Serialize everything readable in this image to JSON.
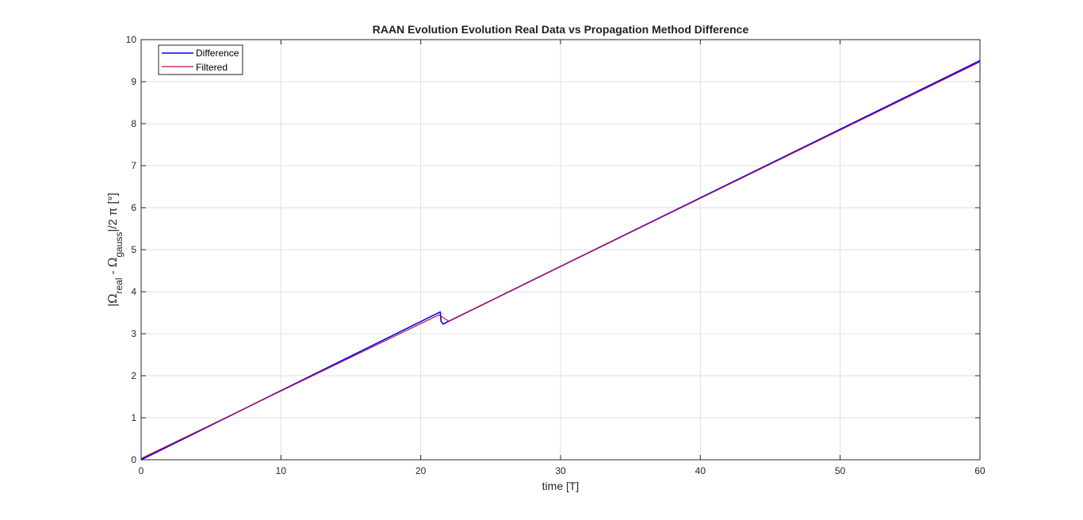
{
  "chart_data": {
    "type": "line",
    "title": "RAAN Evolution Evolution Real Data vs Propagation Method Difference",
    "xlabel": "time [T]",
    "ylabel": {
      "open": "|",
      "omega1": "Ω",
      "sub1": "real",
      "minus": " - ",
      "omega2": "Ω",
      "sub2": "gauss",
      "close": "|/2 π [°]"
    },
    "xlim": [
      0,
      60
    ],
    "ylim": [
      0,
      10
    ],
    "xticks": [
      "0",
      "10",
      "20",
      "30",
      "40",
      "50",
      "60"
    ],
    "yticks": [
      "0",
      "1",
      "2",
      "3",
      "4",
      "5",
      "6",
      "7",
      "8",
      "9",
      "10"
    ],
    "grid": true,
    "legend_position": "top-left",
    "series": [
      {
        "name": "Difference",
        "color": "#0000ff",
        "x": [
          0,
          21.4,
          21.45,
          21.6,
          60
        ],
        "y": [
          0,
          3.52,
          3.3,
          3.23,
          9.5
        ]
      },
      {
        "name": "Filtered",
        "color": "#c0143c",
        "x": [
          0,
          21.3,
          22,
          60
        ],
        "y": [
          0.03,
          3.45,
          3.3,
          9.47
        ]
      }
    ]
  }
}
